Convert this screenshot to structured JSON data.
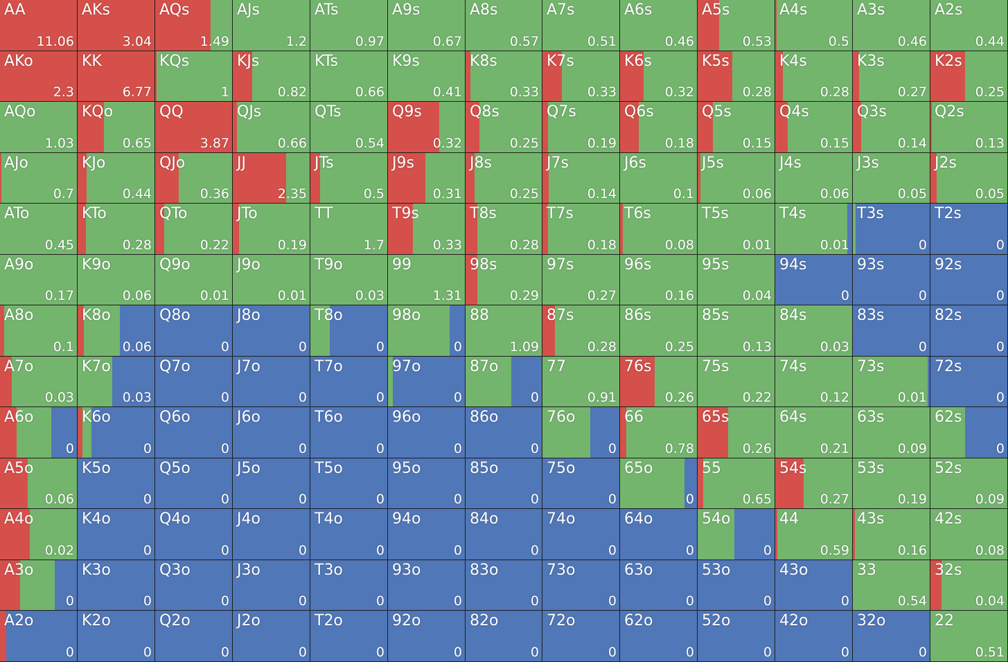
{
  "colors": {
    "raise": "#d5504a",
    "call": "#74b56e",
    "fold": "#5077b8"
  },
  "grid": {
    "rows": [
      [
        [
          "AA",
          "11.06",
          1,
          0
        ],
        [
          "AKs",
          "3.04",
          1,
          0
        ],
        [
          "AQs",
          "1.49",
          0.72,
          0.28
        ],
        [
          "AJs",
          "1.2",
          0,
          1
        ],
        [
          "ATs",
          "0.97",
          0,
          1
        ],
        [
          "A9s",
          "0.67",
          0,
          1
        ],
        [
          "A8s",
          "0.57",
          0,
          1
        ],
        [
          "A7s",
          "0.51",
          0,
          1
        ],
        [
          "A6s",
          "0.46",
          0,
          1
        ],
        [
          "A5s",
          "0.53",
          0.28,
          0.72
        ],
        [
          "A4s",
          "0.5",
          0.02,
          0.98
        ],
        [
          "A3s",
          "0.46",
          0,
          1
        ],
        [
          "A2s",
          "0.44",
          0,
          1
        ]
      ],
      [
        [
          "AKo",
          "2.3",
          1,
          0
        ],
        [
          "KK",
          "6.77",
          1,
          0
        ],
        [
          "KQs",
          "1",
          0.02,
          0.98
        ],
        [
          "KJs",
          "0.82",
          0.25,
          0.75
        ],
        [
          "KTs",
          "0.66",
          0,
          1
        ],
        [
          "K9s",
          "0.41",
          0,
          1
        ],
        [
          "K8s",
          "0.33",
          0.06,
          0.94
        ],
        [
          "K7s",
          "0.33",
          0.25,
          0.75
        ],
        [
          "K6s",
          "0.32",
          0.31,
          0.69
        ],
        [
          "K5s",
          "0.28",
          0.45,
          0.55
        ],
        [
          "K4s",
          "0.28",
          0.1,
          0.9
        ],
        [
          "K3s",
          "0.27",
          0.08,
          0.92
        ],
        [
          "K2s",
          "0.25",
          0.45,
          0.55
        ]
      ],
      [
        [
          "AQo",
          "1.03",
          0,
          1
        ],
        [
          "KQo",
          "0.65",
          0.34,
          0.66
        ],
        [
          "QQ",
          "3.87",
          1,
          0
        ],
        [
          "QJs",
          "0.66",
          0.05,
          0.95
        ],
        [
          "QTs",
          "0.54",
          0,
          1
        ],
        [
          "Q9s",
          "0.32",
          0.67,
          0.33
        ],
        [
          "Q8s",
          "0.25",
          0.18,
          0.82
        ],
        [
          "Q7s",
          "0.19",
          0.07,
          0.93
        ],
        [
          "Q6s",
          "0.18",
          0.24,
          0.76
        ],
        [
          "Q5s",
          "0.15",
          0.2,
          0.8
        ],
        [
          "Q4s",
          "0.15",
          0.16,
          0.84
        ],
        [
          "Q3s",
          "0.14",
          0.11,
          0.89
        ],
        [
          "Q2s",
          "0.13",
          0.02,
          0.98
        ]
      ],
      [
        [
          "AJo",
          "0.7",
          0.02,
          0.98
        ],
        [
          "KJo",
          "0.44",
          0.12,
          0.88
        ],
        [
          "QJo",
          "0.36",
          0.31,
          0.69
        ],
        [
          "JJ",
          "2.35",
          0.69,
          0.31
        ],
        [
          "JTs",
          "0.5",
          0.13,
          0.87
        ],
        [
          "J9s",
          "0.31",
          0.49,
          0.51
        ],
        [
          "J8s",
          "0.25",
          0.12,
          0.88
        ],
        [
          "J7s",
          "0.14",
          0.08,
          0.92
        ],
        [
          "J6s",
          "0.1",
          0,
          1
        ],
        [
          "J5s",
          "0.06",
          0.04,
          0.96
        ],
        [
          "J4s",
          "0.06",
          0,
          1
        ],
        [
          "J3s",
          "0.05",
          0,
          1
        ],
        [
          "J2s",
          "0.05",
          0.08,
          0.92
        ]
      ],
      [
        [
          "ATo",
          "0.45",
          0,
          1
        ],
        [
          "KTo",
          "0.28",
          0.11,
          0.89
        ],
        [
          "QTo",
          "0.22",
          0.12,
          0.88
        ],
        [
          "JTo",
          "0.19",
          0.08,
          0.92
        ],
        [
          "TT",
          "1.7",
          0,
          1
        ],
        [
          "T9s",
          "0.33",
          0.32,
          0.68
        ],
        [
          "T8s",
          "0.28",
          0.15,
          0.85
        ],
        [
          "T7s",
          "0.18",
          0.07,
          0.93
        ],
        [
          "T6s",
          "0.08",
          0.04,
          0.96
        ],
        [
          "T5s",
          "0.01",
          0,
          1
        ],
        [
          "T4s",
          "0.01",
          0,
          0.94
        ],
        [
          "T3s",
          "0",
          0,
          0.04
        ],
        [
          "T2s",
          "0",
          0,
          0
        ]
      ],
      [
        [
          "A9o",
          "0.17",
          0,
          1
        ],
        [
          "K9o",
          "0.06",
          0,
          1
        ],
        [
          "Q9o",
          "0.01",
          0,
          1
        ],
        [
          "J9o",
          "0.01",
          0,
          1
        ],
        [
          "T9o",
          "0.03",
          0,
          1
        ],
        [
          "99",
          "1.31",
          0,
          1
        ],
        [
          "98s",
          "0.29",
          0.15,
          0.85
        ],
        [
          "97s",
          "0.27",
          0,
          1
        ],
        [
          "96s",
          "0.16",
          0,
          1
        ],
        [
          "95s",
          "0.04",
          0,
          1
        ],
        [
          "94s",
          "0",
          0,
          0
        ],
        [
          "93s",
          "0",
          0,
          0
        ],
        [
          "92s",
          "0",
          0,
          0
        ]
      ],
      [
        [
          "A8o",
          "0.1",
          0.05,
          0.95
        ],
        [
          "K8o",
          "0.06",
          0.08,
          0.47
        ],
        [
          "Q8o",
          "0",
          0,
          0
        ],
        [
          "J8o",
          "0",
          0,
          0
        ],
        [
          "T8o",
          "0",
          0,
          0.25
        ],
        [
          "98o",
          "0",
          0,
          0.8
        ],
        [
          "88",
          "1.09",
          0,
          1
        ],
        [
          "87s",
          "0.28",
          0.16,
          0.84
        ],
        [
          "86s",
          "0.25",
          0,
          1
        ],
        [
          "85s",
          "0.13",
          0,
          1
        ],
        [
          "84s",
          "0.03",
          0,
          1
        ],
        [
          "83s",
          "0",
          0,
          0
        ],
        [
          "82s",
          "0",
          0,
          0
        ]
      ],
      [
        [
          "A7o",
          "0.03",
          0.15,
          0.85
        ],
        [
          "K7o",
          "0.03",
          0,
          0.45
        ],
        [
          "Q7o",
          "0",
          0,
          0
        ],
        [
          "J7o",
          "0",
          0,
          0
        ],
        [
          "T7o",
          "0",
          0,
          0
        ],
        [
          "97o",
          "0",
          0,
          0.06
        ],
        [
          "87o",
          "0",
          0,
          0.6
        ],
        [
          "77",
          "0.91",
          0,
          1
        ],
        [
          "76s",
          "0.26",
          0.45,
          0.55
        ],
        [
          "75s",
          "0.22",
          0,
          1
        ],
        [
          "74s",
          "0.12",
          0,
          1
        ],
        [
          "73s",
          "0.01",
          0,
          0.97
        ],
        [
          "72s",
          "0",
          0,
          0
        ]
      ],
      [
        [
          "A6o",
          "0",
          0.22,
          0.45
        ],
        [
          "K6o",
          "0",
          0.06,
          0.12
        ],
        [
          "Q6o",
          "0",
          0,
          0
        ],
        [
          "J6o",
          "0",
          0,
          0
        ],
        [
          "T6o",
          "0",
          0,
          0
        ],
        [
          "96o",
          "0",
          0,
          0
        ],
        [
          "86o",
          "0",
          0,
          0
        ],
        [
          "76o",
          "0",
          0,
          0.62
        ],
        [
          "66",
          "0.78",
          0.08,
          0.92
        ],
        [
          "65s",
          "0.26",
          0.4,
          0.6
        ],
        [
          "64s",
          "0.21",
          0,
          1
        ],
        [
          "63s",
          "0.09",
          0,
          1
        ],
        [
          "62s",
          "0",
          0,
          0.45
        ]
      ],
      [
        [
          "A5o",
          "0.06",
          0.36,
          0.64
        ],
        [
          "K5o",
          "0",
          0,
          0
        ],
        [
          "Q5o",
          "0",
          0,
          0
        ],
        [
          "J5o",
          "0",
          0,
          0
        ],
        [
          "T5o",
          "0",
          0,
          0
        ],
        [
          "95o",
          "0",
          0,
          0
        ],
        [
          "85o",
          "0",
          0,
          0
        ],
        [
          "75o",
          "0",
          0,
          0
        ],
        [
          "65o",
          "0",
          0,
          0.84
        ],
        [
          "55",
          "0.65",
          0.07,
          0.93
        ],
        [
          "54s",
          "0.27",
          0.37,
          0.63
        ],
        [
          "53s",
          "0.19",
          0,
          1
        ],
        [
          "52s",
          "0.09",
          0,
          1
        ]
      ],
      [
        [
          "A4o",
          "0.02",
          0.39,
          0.61
        ],
        [
          "K4o",
          "0",
          0,
          0
        ],
        [
          "Q4o",
          "0",
          0,
          0
        ],
        [
          "J4o",
          "0",
          0,
          0
        ],
        [
          "T4o",
          "0",
          0,
          0
        ],
        [
          "94o",
          "0",
          0,
          0
        ],
        [
          "84o",
          "0",
          0,
          0
        ],
        [
          "74o",
          "0",
          0,
          0
        ],
        [
          "64o",
          "0",
          0,
          0
        ],
        [
          "54o",
          "0",
          0,
          0.48
        ],
        [
          "44",
          "0.59",
          0.03,
          0.97
        ],
        [
          "43s",
          "0.16",
          0.03,
          0.97
        ],
        [
          "42s",
          "0.08",
          0,
          1
        ]
      ],
      [
        [
          "A3o",
          "0",
          0.26,
          0.45
        ],
        [
          "K3o",
          "0",
          0,
          0
        ],
        [
          "Q3o",
          "0",
          0,
          0
        ],
        [
          "J3o",
          "0",
          0,
          0
        ],
        [
          "T3o",
          "0",
          0,
          0
        ],
        [
          "93o",
          "0",
          0,
          0
        ],
        [
          "83o",
          "0",
          0,
          0
        ],
        [
          "73o",
          "0",
          0,
          0
        ],
        [
          "63o",
          "0",
          0,
          0
        ],
        [
          "53o",
          "0",
          0,
          0
        ],
        [
          "43o",
          "0",
          0,
          0
        ],
        [
          "33",
          "0.54",
          0,
          1
        ],
        [
          "32s",
          "0.04",
          0.14,
          0.86
        ]
      ],
      [
        [
          "A2o",
          "0",
          0.08,
          0
        ],
        [
          "K2o",
          "0",
          0,
          0
        ],
        [
          "Q2o",
          "0",
          0,
          0
        ],
        [
          "J2o",
          "0",
          0,
          0
        ],
        [
          "T2o",
          "0",
          0,
          0
        ],
        [
          "92o",
          "0",
          0,
          0
        ],
        [
          "82o",
          "0",
          0,
          0
        ],
        [
          "72o",
          "0",
          0,
          0
        ],
        [
          "62o",
          "0",
          0,
          0
        ],
        [
          "52o",
          "0",
          0,
          0
        ],
        [
          "42o",
          "0",
          0,
          0
        ],
        [
          "32o",
          "0",
          0,
          0
        ],
        [
          "22",
          "0.51",
          0,
          1
        ]
      ]
    ]
  }
}
